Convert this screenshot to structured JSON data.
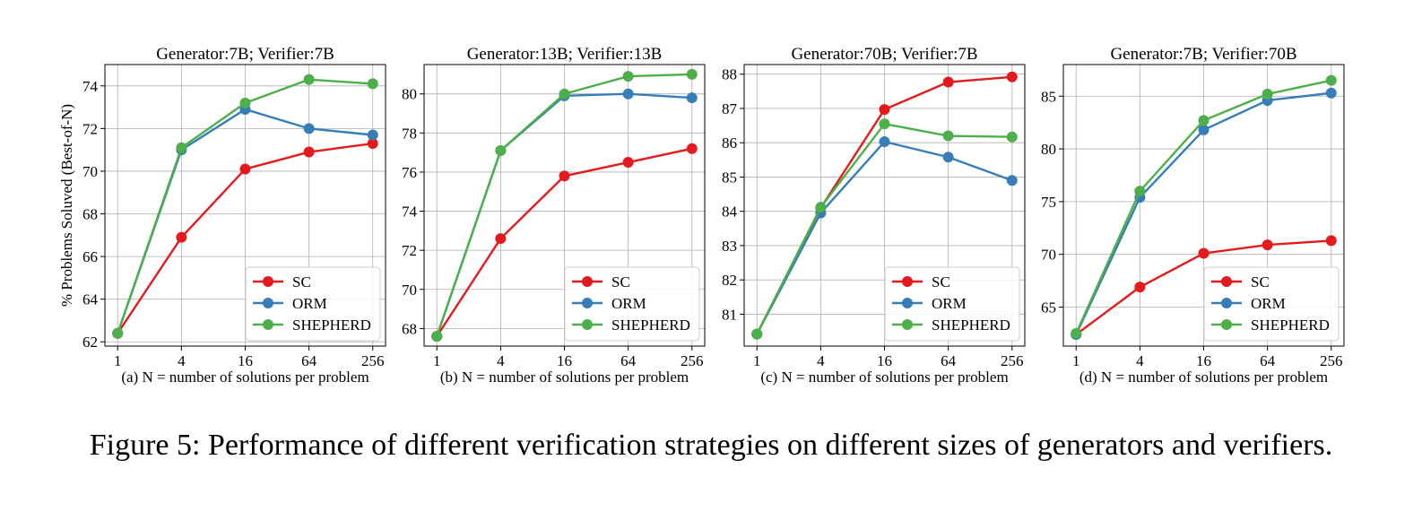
{
  "figure": {
    "caption": "Figure 5: Performance of different verification strategies on different sizes of generators and verifiers.",
    "colors": {
      "SC": "#e41a1c",
      "ORM": "#377eb8",
      "SHEPHERD": "#4daf4a"
    }
  },
  "chart_data": [
    {
      "type": "line",
      "title": "Generator:7B; Verifier:7B",
      "xlabel": "(a) N = number of solutions per problem",
      "ylabel": "% Problems Soluved (Best-of-N)",
      "x": [
        1,
        4,
        16,
        64,
        256
      ],
      "x_scale": "log",
      "x_ticks": [
        "1",
        "4",
        "16",
        "64",
        "256"
      ],
      "ylim": [
        61.8,
        75.0
      ],
      "y_ticks": [
        62,
        64,
        66,
        68,
        70,
        72,
        74
      ],
      "grid": true,
      "legend": "lower-right",
      "series": [
        {
          "name": "SC",
          "values": [
            62.4,
            66.9,
            70.1,
            70.9,
            71.3
          ]
        },
        {
          "name": "ORM",
          "values": [
            62.4,
            71.0,
            72.9,
            72.0,
            71.7
          ]
        },
        {
          "name": "SHEPHERD",
          "values": [
            62.4,
            71.1,
            73.2,
            74.3,
            74.1
          ]
        }
      ]
    },
    {
      "type": "line",
      "title": "Generator:13B; Verifier:13B",
      "xlabel": "(b) N = number of solutions per problem",
      "ylabel": "",
      "x": [
        1,
        4,
        16,
        64,
        256
      ],
      "x_scale": "log",
      "x_ticks": [
        "1",
        "4",
        "16",
        "64",
        "256"
      ],
      "ylim": [
        67.1,
        81.5
      ],
      "y_ticks": [
        68,
        70,
        72,
        74,
        76,
        78,
        80
      ],
      "grid": true,
      "legend": "lower-right",
      "series": [
        {
          "name": "SC",
          "values": [
            67.6,
            72.6,
            75.8,
            76.5,
            77.2
          ]
        },
        {
          "name": "ORM",
          "values": [
            67.6,
            77.1,
            79.9,
            80.0,
            79.8
          ]
        },
        {
          "name": "SHEPHERD",
          "values": [
            67.6,
            77.1,
            80.0,
            80.9,
            81.0
          ]
        }
      ]
    },
    {
      "type": "line",
      "title": "Generator:70B; Verifier:7B",
      "xlabel": "(c) N = number of solutions per problem",
      "ylabel": "",
      "x": [
        1,
        4,
        16,
        64,
        256
      ],
      "x_scale": "log",
      "x_ticks": [
        "1",
        "4",
        "16",
        "64",
        "256"
      ],
      "ylim": [
        80.07,
        88.28
      ],
      "y_ticks": [
        81,
        82,
        83,
        84,
        85,
        86,
        87,
        88
      ],
      "grid": true,
      "legend": "lower-right",
      "series": [
        {
          "name": "SC",
          "values": [
            80.42,
            84.1,
            86.97,
            87.77,
            87.92
          ]
        },
        {
          "name": "ORM",
          "values": [
            80.42,
            83.95,
            86.03,
            85.58,
            84.9
          ]
        },
        {
          "name": "SHEPHERD",
          "values": [
            80.42,
            84.12,
            86.55,
            86.2,
            86.17
          ]
        }
      ]
    },
    {
      "type": "line",
      "title": "Generator:7B; Verifier:70B",
      "xlabel": "(d) N = number of solutions per problem",
      "ylabel": "",
      "x": [
        1,
        4,
        16,
        64,
        256
      ],
      "x_scale": "log",
      "x_ticks": [
        "1",
        "4",
        "16",
        "64",
        "256"
      ],
      "ylim": [
        61.3,
        88.0
      ],
      "y_ticks": [
        65,
        70,
        75,
        80,
        85
      ],
      "grid": true,
      "legend": "lower-right",
      "series": [
        {
          "name": "SC",
          "values": [
            62.4,
            66.9,
            70.1,
            70.9,
            71.3
          ]
        },
        {
          "name": "ORM",
          "values": [
            62.4,
            75.4,
            81.8,
            84.6,
            85.3
          ]
        },
        {
          "name": "SHEPHERD",
          "values": [
            62.5,
            76.0,
            82.7,
            85.2,
            86.5
          ]
        }
      ]
    }
  ]
}
